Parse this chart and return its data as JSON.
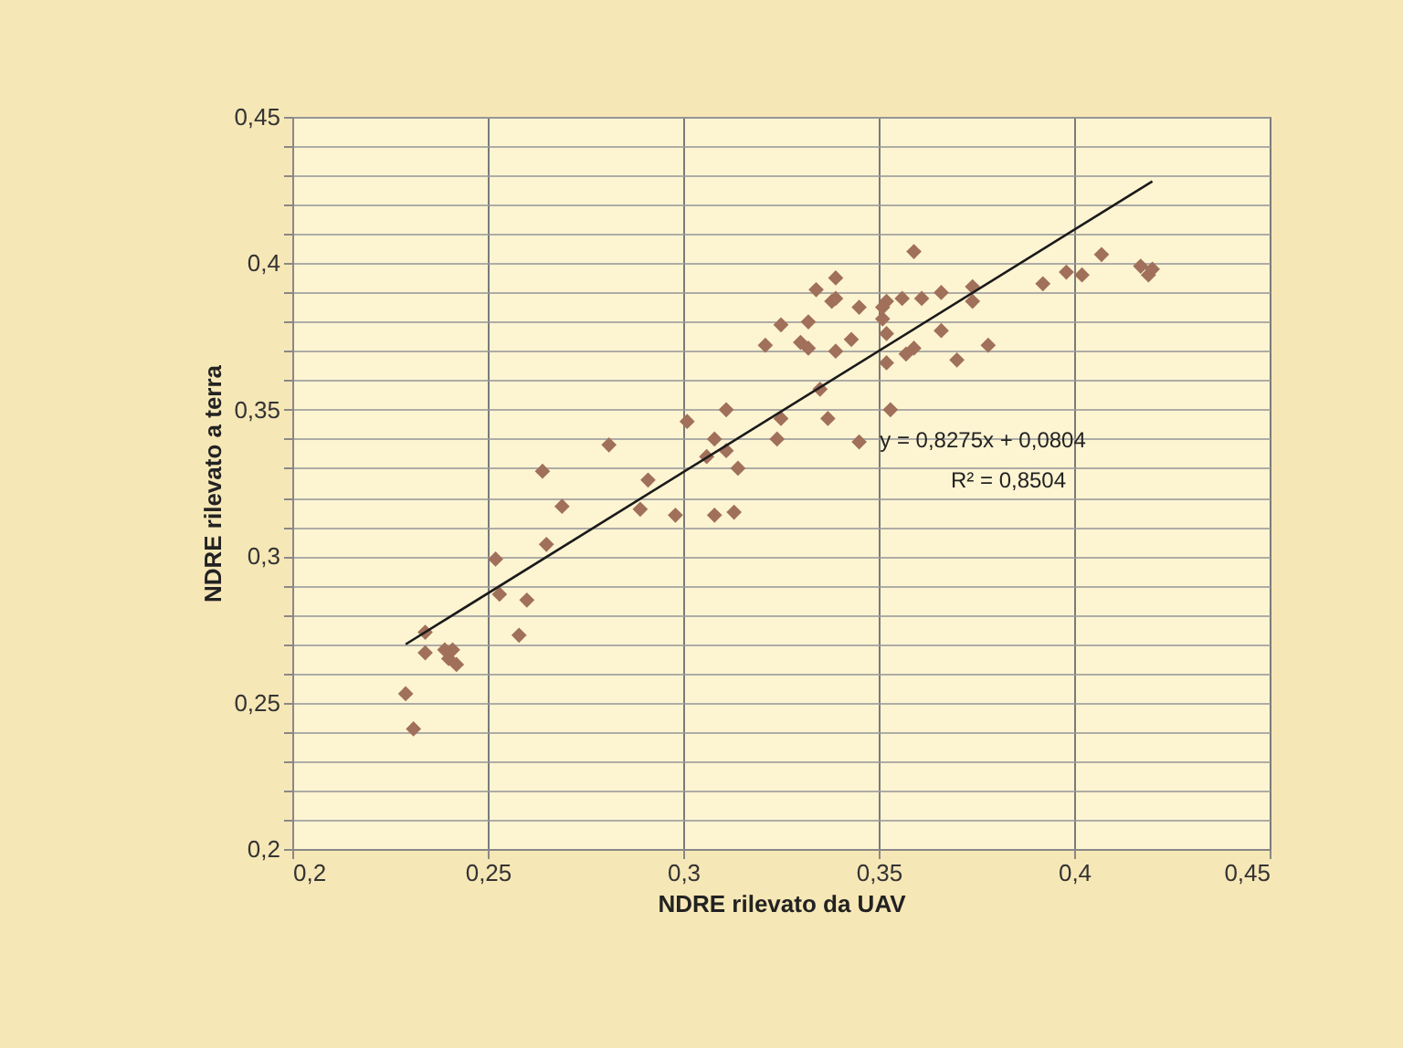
{
  "chart_data": {
    "type": "scatter",
    "xlabel": "NDRE rilevato da UAV",
    "ylabel": "NDRE rilevato a terra",
    "xlim": [
      0.2,
      0.45
    ],
    "ylim": [
      0.2,
      0.45
    ],
    "xticks": [
      {
        "value": 0.2,
        "label": "0,2"
      },
      {
        "value": 0.25,
        "label": "0,25"
      },
      {
        "value": 0.3,
        "label": "0,3"
      },
      {
        "value": 0.35,
        "label": "0,35"
      },
      {
        "value": 0.4,
        "label": "0,4"
      },
      {
        "value": 0.45,
        "label": "0,45"
      }
    ],
    "yticks": [
      {
        "value": 0.2,
        "label": "0,2"
      },
      {
        "value": 0.21,
        "label": null
      },
      {
        "value": 0.22,
        "label": null
      },
      {
        "value": 0.23,
        "label": null
      },
      {
        "value": 0.24,
        "label": null
      },
      {
        "value": 0.25,
        "label": "0,25"
      },
      {
        "value": 0.26,
        "label": null
      },
      {
        "value": 0.27,
        "label": null
      },
      {
        "value": 0.28,
        "label": null
      },
      {
        "value": 0.29,
        "label": null
      },
      {
        "value": 0.3,
        "label": "0,3"
      },
      {
        "value": 0.31,
        "label": null
      },
      {
        "value": 0.32,
        "label": null
      },
      {
        "value": 0.33,
        "label": null
      },
      {
        "value": 0.34,
        "label": null
      },
      {
        "value": 0.35,
        "label": "0,35"
      },
      {
        "value": 0.36,
        "label": null
      },
      {
        "value": 0.37,
        "label": null
      },
      {
        "value": 0.38,
        "label": null
      },
      {
        "value": 0.39,
        "label": null
      },
      {
        "value": 0.4,
        "label": "0,4"
      },
      {
        "value": 0.41,
        "label": null
      },
      {
        "value": 0.42,
        "label": null
      },
      {
        "value": 0.43,
        "label": null
      },
      {
        "value": 0.44,
        "label": null
      },
      {
        "value": 0.45,
        "label": "0,45"
      }
    ],
    "grid": true,
    "series": [
      {
        "marker": "diamond",
        "color": "#a0705a",
        "x": [
          0.229,
          0.231,
          0.234,
          0.234,
          0.239,
          0.241,
          0.24,
          0.242,
          0.252,
          0.253,
          0.26,
          0.258,
          0.264,
          0.265,
          0.269,
          0.281,
          0.291,
          0.289,
          0.298,
          0.301,
          0.306,
          0.308,
          0.311,
          0.308,
          0.311,
          0.314,
          0.313,
          0.321,
          0.325,
          0.325,
          0.324,
          0.33,
          0.332,
          0.332,
          0.334,
          0.335,
          0.337,
          0.339,
          0.338,
          0.339,
          0.339,
          0.343,
          0.345,
          0.345,
          0.351,
          0.351,
          0.352,
          0.352,
          0.352,
          0.353,
          0.356,
          0.359,
          0.357,
          0.359,
          0.361,
          0.366,
          0.366,
          0.37,
          0.374,
          0.374,
          0.378,
          0.392,
          0.398,
          0.402,
          0.407,
          0.417,
          0.419,
          0.42
        ],
        "values": [
          0.253,
          0.241,
          0.274,
          0.267,
          0.268,
          0.268,
          0.265,
          0.263,
          0.299,
          0.287,
          0.285,
          0.273,
          0.329,
          0.304,
          0.317,
          0.338,
          0.326,
          0.316,
          0.314,
          0.346,
          0.334,
          0.34,
          0.336,
          0.314,
          0.35,
          0.33,
          0.315,
          0.372,
          0.379,
          0.347,
          0.34,
          0.373,
          0.38,
          0.371,
          0.391,
          0.357,
          0.347,
          0.395,
          0.387,
          0.388,
          0.37,
          0.374,
          0.385,
          0.339,
          0.381,
          0.385,
          0.387,
          0.366,
          0.376,
          0.35,
          0.388,
          0.404,
          0.369,
          0.371,
          0.388,
          0.39,
          0.377,
          0.367,
          0.392,
          0.387,
          0.372,
          0.393,
          0.397,
          0.396,
          0.403,
          0.399,
          0.396,
          0.398
        ]
      },
      {
        "type": "line",
        "line_style": "solid",
        "color": "#1a1a1a",
        "x": [
          0.229,
          0.42
        ],
        "values": [
          0.2699,
          0.428
        ]
      }
    ],
    "annotations": [
      "y = 0,8275x + 0,0804",
      "R² = 0,8504"
    ]
  }
}
